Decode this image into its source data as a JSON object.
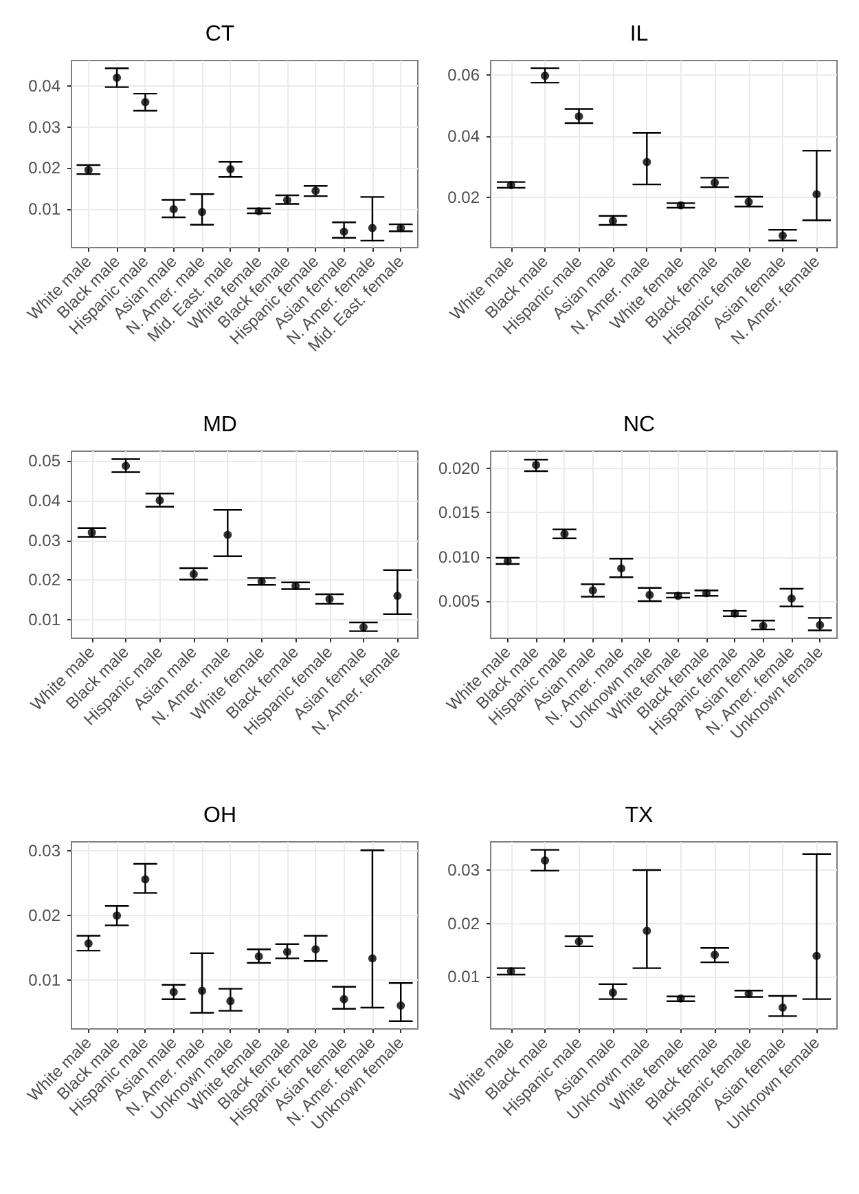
{
  "chart_data": [
    {
      "type": "scatter",
      "title": "CT",
      "categories": [
        "White male",
        "Black male",
        "Hispanic male",
        "Asian male",
        "N. Amer. male",
        "Mid. East. male",
        "White female",
        "Black female",
        "Hispanic female",
        "Asian female",
        "N. Amer. female",
        "Mid. East. female"
      ],
      "ylim": [
        0.0005,
        0.0463
      ],
      "yticks": [
        0.01,
        0.02,
        0.03,
        0.04
      ],
      "grid": true,
      "marker": "circle",
      "series": [
        {
          "color": "#000000",
          "values": [
            0.0195,
            0.0421,
            0.0361,
            0.0099,
            0.0092,
            0.0197,
            0.0094,
            0.0121,
            0.0144,
            0.0044,
            0.0053,
            0.0053
          ],
          "errors": [
            [
              0.0185,
              0.0207
            ],
            [
              0.0398,
              0.0444
            ],
            [
              0.034,
              0.0382
            ],
            [
              0.0079,
              0.0122
            ],
            [
              0.0061,
              0.0136
            ],
            [
              0.0178,
              0.0215
            ],
            [
              0.0089,
              0.0101
            ],
            [
              0.0112,
              0.0133
            ],
            [
              0.0131,
              0.0156
            ],
            [
              0.0029,
              0.0067
            ],
            [
              0.0022,
              0.0129
            ],
            [
              0.0045,
              0.0062
            ]
          ]
        }
      ]
    },
    {
      "type": "scatter",
      "title": "IL",
      "categories": [
        "White male",
        "Black male",
        "Hispanic male",
        "Asian male",
        "N. Amer. male",
        "White female",
        "Black female",
        "Hispanic female",
        "Asian female",
        "N. Amer. female"
      ],
      "ylim": [
        0.0037,
        0.0647
      ],
      "yticks": [
        0.02,
        0.04,
        0.06
      ],
      "grid": true,
      "marker": "circle",
      "series": [
        {
          "color": "#000000",
          "values": [
            0.0241,
            0.0597,
            0.0465,
            0.0124,
            0.0316,
            0.0175,
            0.0249,
            0.0186,
            0.0076,
            0.0211
          ],
          "errors": [
            [
              0.0232,
              0.0251
            ],
            [
              0.0575,
              0.0622
            ],
            [
              0.0443,
              0.0489
            ],
            [
              0.0111,
              0.014
            ],
            [
              0.0243,
              0.0411
            ],
            [
              0.0167,
              0.0182
            ],
            [
              0.0234,
              0.0265
            ],
            [
              0.0171,
              0.0203
            ],
            [
              0.006,
              0.0095
            ],
            [
              0.0126,
              0.0353
            ]
          ]
        }
      ]
    },
    {
      "type": "scatter",
      "title": "MD",
      "categories": [
        "White male",
        "Black male",
        "Hispanic male",
        "Asian male",
        "N. Amer. male",
        "White female",
        "Black female",
        "Hispanic female",
        "Asian female",
        "N. Amer. female"
      ],
      "ylim": [
        0.0053,
        0.0525
      ],
      "yticks": [
        0.01,
        0.02,
        0.03,
        0.04,
        0.05
      ],
      "grid": true,
      "marker": "circle",
      "series": [
        {
          "color": "#000000",
          "values": [
            0.032,
            0.0488,
            0.0401,
            0.0215,
            0.0314,
            0.0196,
            0.0185,
            0.0152,
            0.0081,
            0.016
          ],
          "errors": [
            [
              0.0309,
              0.0331
            ],
            [
              0.0472,
              0.0505
            ],
            [
              0.0385,
              0.0418
            ],
            [
              0.0201,
              0.023
            ],
            [
              0.026,
              0.0377
            ],
            [
              0.0188,
              0.0205
            ],
            [
              0.0177,
              0.0194
            ],
            [
              0.014,
              0.0164
            ],
            [
              0.0071,
              0.0093
            ],
            [
              0.0114,
              0.0225
            ]
          ]
        }
      ]
    },
    {
      "type": "scatter",
      "title": "NC",
      "categories": [
        "White male",
        "Black male",
        "Hispanic male",
        "Asian male",
        "N. Amer. male",
        "Unknown male",
        "White female",
        "Black female",
        "Hispanic female",
        "Asian female",
        "N. Amer. female",
        "Unknown female"
      ],
      "ylim": [
        0.0008,
        0.02195
      ],
      "yticks": [
        {
          "value": 0.005,
          "label": "0.005"
        },
        {
          "value": 0.01,
          "label": "0.010"
        },
        {
          "value": 0.015,
          "label": "0.015"
        },
        {
          "value": 0.02,
          "label": "0.020"
        }
      ],
      "grid": true,
      "marker": "circle",
      "series": [
        {
          "color": "#000000",
          "values": [
            0.0095,
            0.0204,
            0.0126,
            0.0062,
            0.0087,
            0.0057,
            0.0056,
            0.0059,
            0.0036,
            0.0022,
            0.0053,
            0.0023
          ],
          "errors": [
            [
              0.0092,
              0.0099
            ],
            [
              0.0197,
              0.021
            ],
            [
              0.0121,
              0.0131
            ],
            [
              0.0055,
              0.0069
            ],
            [
              0.0077,
              0.0098
            ],
            [
              0.005,
              0.0065
            ],
            [
              0.0054,
              0.0059
            ],
            [
              0.0056,
              0.0062
            ],
            [
              0.0033,
              0.0039
            ],
            [
              0.0018,
              0.0028
            ],
            [
              0.0044,
              0.0064
            ],
            [
              0.0017,
              0.0031
            ]
          ]
        }
      ]
    },
    {
      "type": "scatter",
      "title": "OH",
      "categories": [
        "White male",
        "Black male",
        "Hispanic male",
        "Asian male",
        "N. Amer. male",
        "Unknown male",
        "White female",
        "Black female",
        "Hispanic female",
        "Asian female",
        "N. Amer. female",
        "Unknown female"
      ],
      "ylim": [
        0.0025,
        0.0314
      ],
      "yticks": [
        0.01,
        0.02,
        0.03
      ],
      "grid": true,
      "marker": "circle",
      "series": [
        {
          "color": "#000000",
          "values": [
            0.0157,
            0.02,
            0.0256,
            0.0082,
            0.0084,
            0.0068,
            0.0137,
            0.0144,
            0.0148,
            0.0071,
            0.0134,
            0.0061
          ],
          "errors": [
            [
              0.0146,
              0.0169
            ],
            [
              0.0185,
              0.0215
            ],
            [
              0.0235,
              0.028
            ],
            [
              0.0071,
              0.0093
            ],
            [
              0.005,
              0.0142
            ],
            [
              0.0053,
              0.0087
            ],
            [
              0.0127,
              0.0148
            ],
            [
              0.0134,
              0.0156
            ],
            [
              0.013,
              0.0169
            ],
            [
              0.0056,
              0.009
            ],
            [
              0.0058,
              0.0301
            ],
            [
              0.0037,
              0.0096
            ]
          ]
        }
      ]
    },
    {
      "type": "scatter",
      "title": "TX",
      "categories": [
        "White male",
        "Black male",
        "Hispanic male",
        "Asian male",
        "Unknown male",
        "White female",
        "Black female",
        "Hispanic female",
        "Asian female",
        "Unknown female"
      ],
      "ylim": [
        0.0002,
        0.0353
      ],
      "yticks": [
        0.01,
        0.02,
        0.03
      ],
      "grid": true,
      "marker": "circle",
      "series": [
        {
          "color": "#000000",
          "values": [
            0.011,
            0.0318,
            0.0166,
            0.007,
            0.0186,
            0.0059,
            0.0141,
            0.0068,
            0.0042,
            0.0139
          ],
          "errors": [
            [
              0.0104,
              0.0116
            ],
            [
              0.0299,
              0.0338
            ],
            [
              0.0157,
              0.0176
            ],
            [
              0.0058,
              0.0086
            ],
            [
              0.0116,
              0.03
            ],
            [
              0.0054,
              0.0063
            ],
            [
              0.0127,
              0.0154
            ],
            [
              0.0062,
              0.0074
            ],
            [
              0.0026,
              0.0064
            ],
            [
              0.0058,
              0.033
            ]
          ]
        }
      ]
    }
  ]
}
